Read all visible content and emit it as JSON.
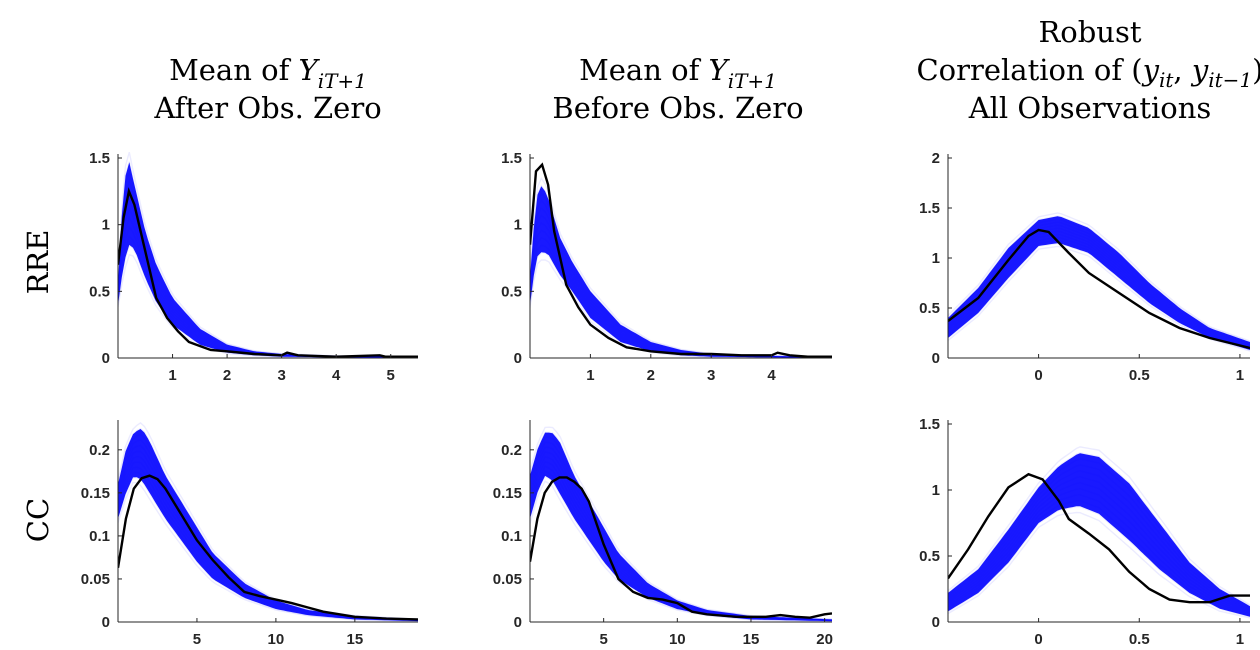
{
  "figure": {
    "columns": [
      {
        "title_lines": [
          "Mean of Y",
          "After Obs. Zero"
        ],
        "title_math": {
          "base": "Y",
          "sub": "iT+1"
        }
      },
      {
        "title_lines": [
          "Mean of Y",
          "Before Obs. Zero"
        ],
        "title_math": {
          "base": "Y",
          "sub": "iT+1"
        }
      },
      {
        "title_lines": [
          "Robust",
          "Correlation of (y",
          "All Observations"
        ],
        "title_math": {
          "corr": "(y_it, y_it−1)"
        }
      }
    ],
    "rows": [
      "RRE",
      "CC"
    ],
    "colors": {
      "simulated": "#0000ff",
      "observed": "#000000"
    }
  },
  "chart_data": [
    {
      "type": "line",
      "row": "RRE",
      "column": 0,
      "xlim": [
        0,
        5.5
      ],
      "ylim": [
        0,
        1.5
      ],
      "xticks": [
        "1",
        "2",
        "3",
        "4",
        "5"
      ],
      "yticks": [
        "0",
        "0.5",
        "1",
        "1.5"
      ],
      "band": {
        "x": [
          0,
          0.1,
          0.2,
          0.3,
          0.5,
          0.7,
          1,
          1.5,
          2,
          2.5,
          3,
          4,
          5.5
        ],
        "lower": [
          0.4,
          0.7,
          0.85,
          0.82,
          0.6,
          0.42,
          0.25,
          0.1,
          0.04,
          0.02,
          0.01,
          0.005,
          0
        ],
        "upper": [
          0.55,
          1.3,
          1.48,
          1.3,
          0.95,
          0.7,
          0.45,
          0.22,
          0.1,
          0.05,
          0.03,
          0.015,
          0.01
        ]
      },
      "observed": {
        "x": [
          0,
          0.1,
          0.2,
          0.3,
          0.5,
          0.7,
          0.9,
          1.1,
          1.3,
          1.5,
          1.7,
          2,
          2.5,
          3,
          3.1,
          3.3,
          4,
          4.8,
          4.9,
          5,
          5.5
        ],
        "y": [
          0.7,
          1.05,
          1.25,
          1.15,
          0.8,
          0.45,
          0.3,
          0.2,
          0.12,
          0.09,
          0.06,
          0.05,
          0.03,
          0.02,
          0.04,
          0.02,
          0.01,
          0.02,
          0.01,
          0.01,
          0.01
        ]
      }
    },
    {
      "type": "line",
      "row": "RRE",
      "column": 1,
      "xlim": [
        0,
        5
      ],
      "ylim": [
        0,
        1.5
      ],
      "xticks": [
        "1",
        "2",
        "3",
        "4"
      ],
      "yticks": [
        "0",
        "0.5",
        "1",
        "1.5"
      ],
      "band": {
        "x": [
          0,
          0.1,
          0.2,
          0.3,
          0.5,
          0.7,
          1,
          1.5,
          2,
          2.5,
          3,
          4,
          5
        ],
        "lower": [
          0.4,
          0.75,
          0.8,
          0.78,
          0.62,
          0.5,
          0.3,
          0.12,
          0.05,
          0.02,
          0.01,
          0.005,
          0
        ],
        "upper": [
          0.6,
          1.2,
          1.3,
          1.2,
          0.9,
          0.72,
          0.5,
          0.25,
          0.12,
          0.06,
          0.03,
          0.015,
          0.01
        ]
      },
      "observed": {
        "x": [
          0,
          0.1,
          0.2,
          0.3,
          0.4,
          0.6,
          0.8,
          1,
          1.3,
          1.6,
          2,
          2.5,
          3,
          3.5,
          4,
          4.1,
          4.3,
          4.6,
          5
        ],
        "y": [
          0.85,
          1.4,
          1.45,
          1.3,
          0.95,
          0.55,
          0.38,
          0.25,
          0.15,
          0.08,
          0.05,
          0.03,
          0.03,
          0.02,
          0.02,
          0.04,
          0.02,
          0.01,
          0.01
        ]
      }
    },
    {
      "type": "line",
      "row": "RRE",
      "column": 2,
      "xlim": [
        -0.45,
        1.05
      ],
      "ylim": [
        0,
        2
      ],
      "xticks": [
        "0",
        "0.5",
        "1"
      ],
      "yticks": [
        "0",
        "0.5",
        "1",
        "1.5",
        "2"
      ],
      "band": {
        "x": [
          -0.45,
          -0.3,
          -0.15,
          0,
          0.1,
          0.25,
          0.4,
          0.55,
          0.7,
          0.85,
          1.05
        ],
        "lower": [
          0.2,
          0.45,
          0.8,
          1.12,
          1.15,
          1.05,
          0.8,
          0.55,
          0.35,
          0.2,
          0.08
        ],
        "upper": [
          0.4,
          0.7,
          1.1,
          1.38,
          1.42,
          1.3,
          1.05,
          0.75,
          0.5,
          0.3,
          0.16
        ]
      },
      "observed": {
        "x": [
          -0.45,
          -0.3,
          -0.15,
          -0.05,
          0,
          0.05,
          0.15,
          0.25,
          0.4,
          0.55,
          0.7,
          0.85,
          1.05
        ],
        "y": [
          0.37,
          0.6,
          0.98,
          1.22,
          1.28,
          1.26,
          1.05,
          0.85,
          0.65,
          0.45,
          0.3,
          0.2,
          0.1
        ]
      }
    },
    {
      "type": "line",
      "row": "CC",
      "column": 0,
      "xlim": [
        0,
        19
      ],
      "ylim": [
        0,
        0.23
      ],
      "xticks": [
        "5",
        "10",
        "15"
      ],
      "yticks": [
        "0",
        "0.05",
        "0.1",
        "0.15",
        "0.2"
      ],
      "band": {
        "x": [
          0,
          0.5,
          1,
          1.5,
          2,
          3,
          4,
          5,
          6,
          8,
          10,
          12,
          15,
          19
        ],
        "lower": [
          0.12,
          0.15,
          0.17,
          0.165,
          0.15,
          0.12,
          0.095,
          0.07,
          0.05,
          0.028,
          0.015,
          0.008,
          0.003,
          0.001
        ],
        "upper": [
          0.16,
          0.2,
          0.22,
          0.225,
          0.21,
          0.17,
          0.14,
          0.11,
          0.08,
          0.045,
          0.025,
          0.014,
          0.007,
          0.003
        ]
      },
      "observed": {
        "x": [
          0,
          0.5,
          1,
          1.5,
          2,
          2.5,
          3,
          4,
          5,
          6,
          7,
          8,
          9,
          10,
          11,
          12,
          13,
          15,
          17,
          19
        ],
        "y": [
          0.063,
          0.12,
          0.155,
          0.167,
          0.17,
          0.166,
          0.155,
          0.125,
          0.095,
          0.072,
          0.052,
          0.035,
          0.03,
          0.026,
          0.022,
          0.017,
          0.012,
          0.006,
          0.004,
          0.003
        ]
      }
    },
    {
      "type": "line",
      "row": "CC",
      "column": 1,
      "xlim": [
        0,
        20.5
      ],
      "ylim": [
        0,
        0.23
      ],
      "xticks": [
        "5",
        "10",
        "15",
        "20"
      ],
      "yticks": [
        "0",
        "0.05",
        "0.1",
        "0.15",
        "0.2"
      ],
      "band": {
        "x": [
          0,
          0.5,
          1,
          1.5,
          2,
          3,
          4,
          5,
          6,
          8,
          10,
          12,
          15,
          20.5
        ],
        "lower": [
          0.12,
          0.15,
          0.17,
          0.165,
          0.15,
          0.12,
          0.095,
          0.07,
          0.05,
          0.028,
          0.015,
          0.008,
          0.003,
          0.001
        ],
        "upper": [
          0.17,
          0.2,
          0.22,
          0.22,
          0.21,
          0.17,
          0.14,
          0.11,
          0.08,
          0.045,
          0.025,
          0.014,
          0.007,
          0.003
        ]
      },
      "observed": {
        "x": [
          0,
          0.5,
          1,
          1.5,
          2,
          2.5,
          3,
          3.5,
          4,
          5,
          6,
          7,
          8,
          9,
          10,
          11,
          12,
          14,
          16,
          17,
          18,
          19,
          20,
          20.5
        ],
        "y": [
          0.07,
          0.12,
          0.15,
          0.163,
          0.168,
          0.168,
          0.163,
          0.155,
          0.14,
          0.09,
          0.05,
          0.035,
          0.028,
          0.026,
          0.022,
          0.012,
          0.009,
          0.006,
          0.006,
          0.008,
          0.006,
          0.005,
          0.009,
          0.01
        ]
      }
    },
    {
      "type": "line",
      "row": "CC",
      "column": 2,
      "xlim": [
        -0.45,
        1.05
      ],
      "ylim": [
        0,
        1.5
      ],
      "xticks": [
        "0",
        "0.5",
        "1"
      ],
      "yticks": [
        "0",
        "0.5",
        "1",
        "1.5"
      ],
      "band": {
        "x": [
          -0.45,
          -0.3,
          -0.15,
          0,
          0.1,
          0.2,
          0.3,
          0.45,
          0.6,
          0.75,
          0.9,
          1.05
        ],
        "lower": [
          0.08,
          0.22,
          0.45,
          0.75,
          0.85,
          0.88,
          0.82,
          0.62,
          0.4,
          0.22,
          0.1,
          0.04
        ],
        "upper": [
          0.22,
          0.4,
          0.7,
          1.02,
          1.18,
          1.28,
          1.25,
          1.05,
          0.75,
          0.45,
          0.25,
          0.12
        ]
      },
      "observed": {
        "x": [
          -0.45,
          -0.35,
          -0.25,
          -0.15,
          -0.05,
          0.02,
          0.1,
          0.15,
          0.25,
          0.35,
          0.45,
          0.55,
          0.65,
          0.75,
          0.85,
          0.95,
          1.05
        ],
        "y": [
          0.33,
          0.55,
          0.8,
          1.02,
          1.12,
          1.08,
          0.92,
          0.78,
          0.67,
          0.55,
          0.38,
          0.25,
          0.17,
          0.15,
          0.15,
          0.2,
          0.2
        ]
      }
    }
  ]
}
